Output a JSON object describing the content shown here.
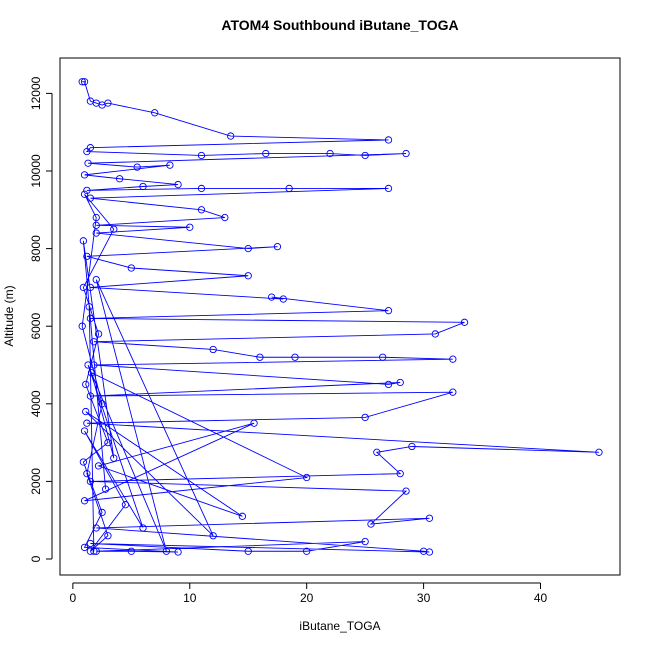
{
  "chart_data": {
    "type": "line",
    "title": "ATOM4 Southbound iButane_TOGA",
    "x_label": "iButane_TOGA",
    "y_label": "Altitude (m)",
    "color": "#0000ff",
    "marker": "circle",
    "xlim": [
      -1.1,
      46.8
    ],
    "ylim": [
      -412,
      12912
    ],
    "xticks": [
      0,
      10,
      20,
      30,
      40
    ],
    "yticks": [
      0,
      2000,
      4000,
      6000,
      8000,
      10000,
      12000
    ],
    "x": [
      0.8,
      1.0,
      1.5,
      2.0,
      2.5,
      3.0,
      7.0,
      13.5,
      27.0,
      1.5,
      1.2,
      11.0,
      16.5,
      22.0,
      25.0,
      28.5,
      1.3,
      5.5,
      8.3,
      1.0,
      4.0,
      9.0,
      6.0,
      1.2,
      11.0,
      18.5,
      27.0,
      1.5,
      11.0,
      13.0,
      2.0,
      10.0,
      2.0,
      15.0,
      17.5,
      1.2,
      5.0,
      15.0,
      1.5,
      18.0,
      17.0,
      27.0,
      1.5,
      33.5,
      31.0,
      1.8,
      12.0,
      16.0,
      19.0,
      26.5,
      32.5,
      1.8,
      27.0,
      28.0,
      1.5,
      32.5,
      25.0,
      1.2,
      45.0,
      29.0,
      26.0,
      28.0,
      1.5,
      28.5,
      25.5,
      30.5,
      2.0,
      30.0,
      30.5,
      1.5,
      15.0,
      20.0,
      25.0,
      2.0,
      5.0,
      9.0,
      1.0,
      2.5,
      0.9,
      3.0,
      1.1,
      2.2,
      0.9,
      3.5,
      1.0,
      2.0,
      0.8,
      2.5,
      1.2,
      3.0,
      1.5,
      4.5,
      1.0,
      6.0,
      1.3,
      8.0,
      2.0,
      12.0,
      1.1,
      14.5,
      2.2,
      15.5,
      1.0,
      20.0,
      1.6,
      3.5,
      0.9,
      2.8,
      1.4,
      1.8
    ],
    "values": [
      12300,
      12300,
      11800,
      11750,
      11700,
      11750,
      11500,
      10900,
      10800,
      10600,
      10500,
      10400,
      10450,
      10450,
      10400,
      10450,
      10200,
      10100,
      10150,
      9900,
      9800,
      9650,
      9600,
      9500,
      9550,
      9550,
      9550,
      9300,
      9000,
      8800,
      8600,
      8550,
      8400,
      8000,
      8050,
      7800,
      7500,
      7300,
      7000,
      6700,
      6750,
      6400,
      6200,
      6100,
      5800,
      5600,
      5400,
      5200,
      5200,
      5200,
      5150,
      5000,
      4500,
      4550,
      4200,
      4300,
      3650,
      3500,
      2750,
      2900,
      2750,
      2200,
      2000,
      1750,
      900,
      1050,
      800,
      200,
      180,
      400,
      200,
      200,
      450,
      200,
      200,
      180,
      300,
      1200,
      2500,
      3000,
      4500,
      5800,
      7000,
      8500,
      9400,
      8800,
      6000,
      4000,
      2200,
      600,
      200,
      1400,
      3300,
      800,
      5000,
      200,
      7200,
      600,
      3800,
      1100,
      2400,
      3500,
      1500,
      2100,
      4800,
      2600,
      8200,
      1800,
      6500,
      200
    ]
  }
}
